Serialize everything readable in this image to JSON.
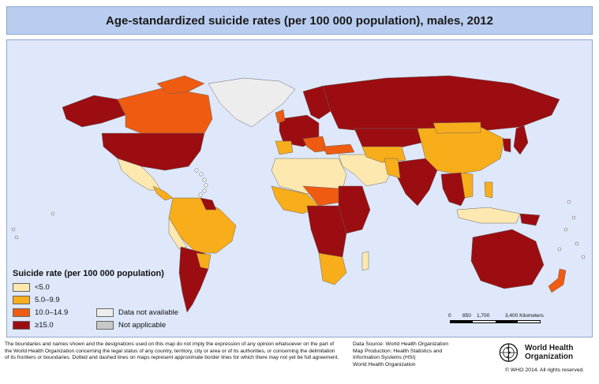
{
  "title": "Age-standardized suicide rates (per 100 000 population), males, 2012",
  "legend": {
    "title": "Suicide rate (per 100 000 population)",
    "classes": [
      {
        "label": "<5.0",
        "color": "#fde8b0"
      },
      {
        "label": "5.0–9.9",
        "color": "#f8ad1a"
      },
      {
        "label": "10.0–14.9",
        "color": "#ef5b11"
      },
      {
        "label": "≥15.0",
        "color": "#9b0d11"
      }
    ],
    "special": [
      {
        "label": "Data not available",
        "color": "#ededed"
      },
      {
        "label": "Not applicable",
        "color": "#c8c8c8"
      }
    ]
  },
  "scale": {
    "ticks": [
      "0",
      "850",
      "1,700",
      "3,400 Kilometers"
    ]
  },
  "disclaimer": "The boundaries and names shown and the designations used on this map do not imply the expression of any opinion whatsoever on the part of the World Health Organization concerning the legal status of any country, territory, city or area or of its authorities, or concerning the delimitation of its frontiers or boundaries. Dotted and dashed lines on maps represent approximate border lines for which there may not yet be full agreement.",
  "source": {
    "line1": "Data Source: World Health Organization",
    "line2": "Map Production: Health Statistics and",
    "line3": "Information Systems (HSI)",
    "line4": "World Health Organization"
  },
  "who": {
    "name_line1": "World Health",
    "name_line2": "Organization",
    "copyright": "© WHO 2014. All rights reserved."
  },
  "colors": {
    "ocean": "#dfe8fb",
    "border": "#8ea6cc"
  }
}
